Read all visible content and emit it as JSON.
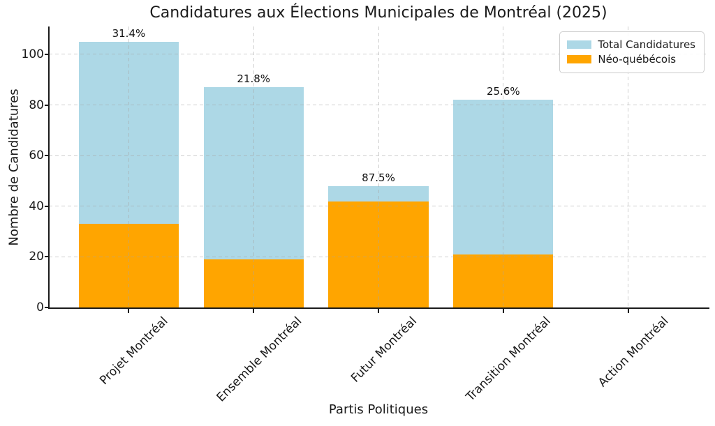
{
  "chart_data": {
    "type": "bar",
    "title": "Candidatures aux Élections Municipales de Montréal (2025)",
    "xlabel": "Partis Politiques",
    "ylabel": "Nombre de Candidatures",
    "categories": [
      "Projet Montréal",
      "Ensemble Montréal",
      "Futur Montréal",
      "Transition Montréal",
      "Action Montréal"
    ],
    "series": [
      {
        "name": "Total Candidatures",
        "color": "#ADD8E6",
        "values": [
          105,
          87,
          48,
          82,
          0
        ]
      },
      {
        "name": "Néo-québécois",
        "color": "#FFA500",
        "values": [
          33,
          19,
          42,
          21,
          0
        ]
      }
    ],
    "bar_labels": [
      "31.4%",
      "21.8%",
      "87.5%",
      "25.6%",
      ""
    ],
    "ylim": [
      0,
      111
    ],
    "yticks": [
      0,
      20,
      40,
      60,
      80,
      100
    ],
    "xlim": [
      -0.64,
      4.64
    ],
    "bar_width": 0.8,
    "grid": "dashed",
    "legend_position": "upper right",
    "text_color": "#1a1a1a"
  }
}
